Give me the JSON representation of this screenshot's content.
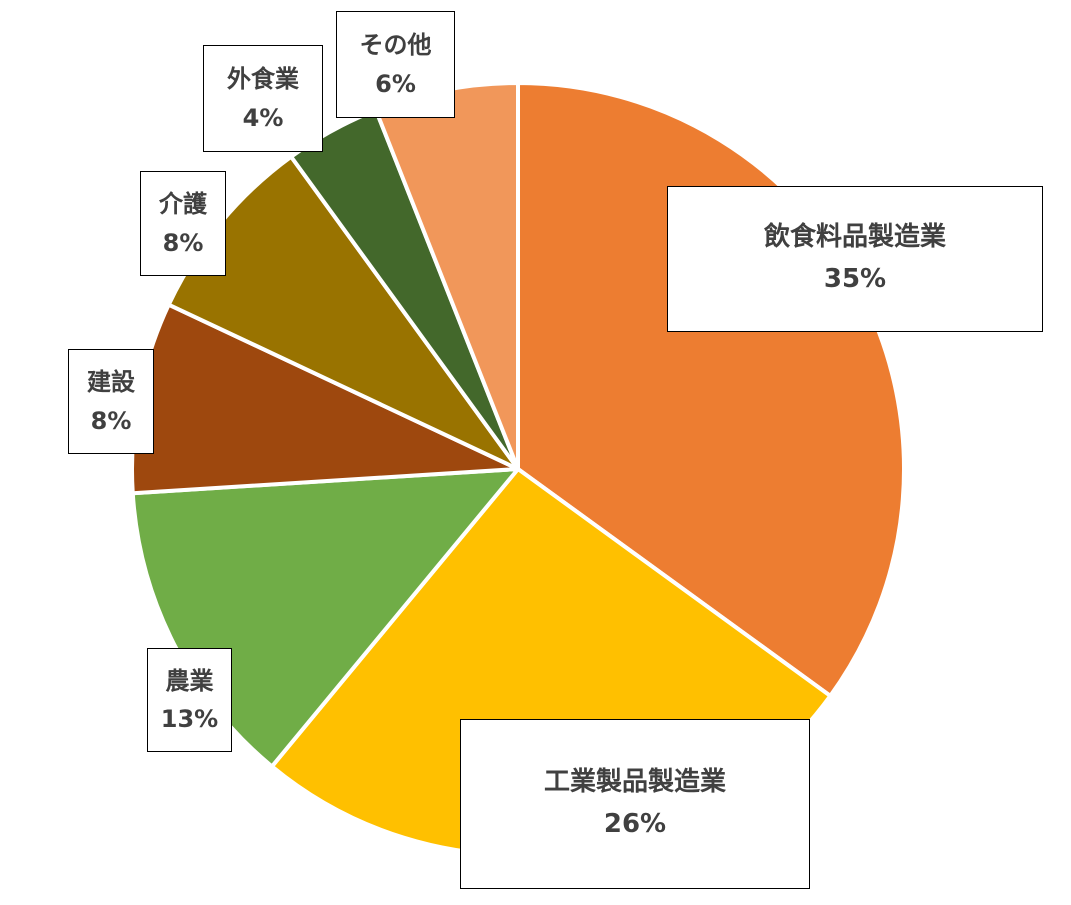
{
  "chart_data": {
    "type": "pie",
    "slices": [
      {
        "label": "飲食料品製造業",
        "value": 35,
        "value_label": "35%",
        "color": "#ED7D31"
      },
      {
        "label": "工業製品製造業",
        "value": 26,
        "value_label": "26%",
        "color": "#FFC000"
      },
      {
        "label": "農業",
        "value": 13,
        "value_label": "13%",
        "color": "#70AD47"
      },
      {
        "label": "建設",
        "value": 8,
        "value_label": "8%",
        "color": "#9E480E"
      },
      {
        "label": "介護",
        "value": 8,
        "value_label": "8%",
        "color": "#997300"
      },
      {
        "label": "外食業",
        "value": 4,
        "value_label": "4%",
        "color": "#43682B"
      },
      {
        "label": "その他",
        "value": 6,
        "value_label": "6%",
        "color": "#F1975A"
      }
    ],
    "start_angle": "12 o'clock",
    "direction": "clockwise",
    "legend": "none",
    "data_labels": "category and percentage in boxed callouts"
  }
}
